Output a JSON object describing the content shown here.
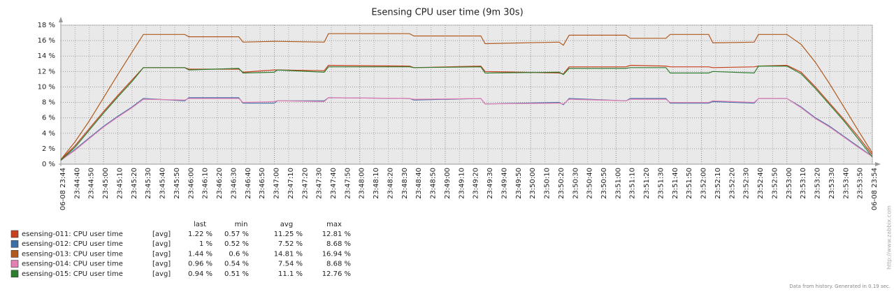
{
  "chart_data": {
    "type": "line",
    "title": "Esensing CPU user time (9m 30s)",
    "x": [
      0,
      10,
      20,
      30,
      40,
      50,
      58,
      87,
      90,
      125,
      128,
      150,
      152,
      185,
      188,
      245,
      248,
      295,
      298,
      350,
      353,
      357,
      397,
      400,
      425,
      428,
      455,
      458,
      487,
      490,
      510,
      520,
      530,
      540,
      550,
      560,
      570
    ],
    "xlim": [
      0,
      570
    ],
    "xticks": [
      {
        "value": 0,
        "label": "06-08 23:44"
      },
      {
        "value": 10,
        "label": "23:44:40"
      },
      {
        "value": 20,
        "label": "23:44:50"
      },
      {
        "value": 30,
        "label": "23:45:00"
      },
      {
        "value": 40,
        "label": "23:45:10"
      },
      {
        "value": 50,
        "label": "23:45:20"
      },
      {
        "value": 60,
        "label": "23:45:30"
      },
      {
        "value": 70,
        "label": "23:45:40"
      },
      {
        "value": 80,
        "label": "23:45:50"
      },
      {
        "value": 90,
        "label": "23:46:00"
      },
      {
        "value": 100,
        "label": "23:46:10"
      },
      {
        "value": 110,
        "label": "23:46:20"
      },
      {
        "value": 120,
        "label": "23:46:30"
      },
      {
        "value": 130,
        "label": "23:46:40"
      },
      {
        "value": 140,
        "label": "23:46:50"
      },
      {
        "value": 150,
        "label": "23:47:00"
      },
      {
        "value": 160,
        "label": "23:47:10"
      },
      {
        "value": 170,
        "label": "23:47:20"
      },
      {
        "value": 180,
        "label": "23:47:30"
      },
      {
        "value": 190,
        "label": "23:47:40"
      },
      {
        "value": 200,
        "label": "23:47:50"
      },
      {
        "value": 210,
        "label": "23:48:00"
      },
      {
        "value": 220,
        "label": "23:48:10"
      },
      {
        "value": 230,
        "label": "23:48:20"
      },
      {
        "value": 240,
        "label": "23:48:30"
      },
      {
        "value": 250,
        "label": "23:48:40"
      },
      {
        "value": 260,
        "label": "23:48:50"
      },
      {
        "value": 270,
        "label": "23:49:00"
      },
      {
        "value": 280,
        "label": "23:49:10"
      },
      {
        "value": 290,
        "label": "23:49:20"
      },
      {
        "value": 300,
        "label": "23:49:30"
      },
      {
        "value": 310,
        "label": "23:49:40"
      },
      {
        "value": 320,
        "label": "23:49:50"
      },
      {
        "value": 330,
        "label": "23:50:00"
      },
      {
        "value": 340,
        "label": "23:50:10"
      },
      {
        "value": 350,
        "label": "23:50:20"
      },
      {
        "value": 360,
        "label": "23:50:30"
      },
      {
        "value": 370,
        "label": "23:50:40"
      },
      {
        "value": 380,
        "label": "23:50:50"
      },
      {
        "value": 390,
        "label": "23:51:00"
      },
      {
        "value": 400,
        "label": "23:51:10"
      },
      {
        "value": 410,
        "label": "23:51:20"
      },
      {
        "value": 420,
        "label": "23:51:30"
      },
      {
        "value": 430,
        "label": "23:51:40"
      },
      {
        "value": 440,
        "label": "23:51:50"
      },
      {
        "value": 450,
        "label": "23:52:00"
      },
      {
        "value": 460,
        "label": "23:52:10"
      },
      {
        "value": 470,
        "label": "23:52:20"
      },
      {
        "value": 480,
        "label": "23:52:30"
      },
      {
        "value": 490,
        "label": "23:52:40"
      },
      {
        "value": 500,
        "label": "23:52:50"
      },
      {
        "value": 510,
        "label": "23:53:00"
      },
      {
        "value": 520,
        "label": "23:53:10"
      },
      {
        "value": 530,
        "label": "23:53:20"
      },
      {
        "value": 540,
        "label": "23:53:30"
      },
      {
        "value": 550,
        "label": "23:53:40"
      },
      {
        "value": 560,
        "label": "23:53:50"
      },
      {
        "value": 570,
        "label": "06-08 23:54"
      }
    ],
    "ylim": [
      0,
      18
    ],
    "yticks": [
      {
        "value": 0,
        "label": "0 %"
      },
      {
        "value": 2,
        "label": "2 %"
      },
      {
        "value": 4,
        "label": "4 %"
      },
      {
        "value": 6,
        "label": "6 %"
      },
      {
        "value": 8,
        "label": "8 %"
      },
      {
        "value": 10,
        "label": "10 %"
      },
      {
        "value": 12,
        "label": "12 %"
      },
      {
        "value": 14,
        "label": "14 %"
      },
      {
        "value": 16,
        "label": "16 %"
      },
      {
        "value": 18,
        "label": "18 %"
      }
    ],
    "grid": true,
    "legend_columns": [
      "last",
      "min",
      "avg",
      "max"
    ],
    "series": [
      {
        "name": "esensing-011: CPU user time",
        "function": "[avg]",
        "last": "1.22 %",
        "min": "0.57 %",
        "avg": "11.25 %",
        "max": "12.81 %",
        "color": "#c8401e",
        "values": [
          0.6,
          2.4,
          4.6,
          6.8,
          8.9,
          10.9,
          12.5,
          12.5,
          12.3,
          12.3,
          11.9,
          12.2,
          12.2,
          12.1,
          12.8,
          12.7,
          12.5,
          12.7,
          12.0,
          11.8,
          11.7,
          12.6,
          12.6,
          12.8,
          12.7,
          12.6,
          12.6,
          12.5,
          12.6,
          12.7,
          12.8,
          11.9,
          10.0,
          7.9,
          5.8,
          3.6,
          1.22
        ]
      },
      {
        "name": "esensing-012: CPU user time",
        "function": "[avg]",
        "last": "1 %",
        "min": "0.52 %",
        "avg": "7.52 %",
        "max": "8.68 %",
        "color": "#3c6fa8",
        "values": [
          0.5,
          1.9,
          3.4,
          4.9,
          6.2,
          7.4,
          8.5,
          8.2,
          8.6,
          8.6,
          7.9,
          7.9,
          8.2,
          8.2,
          8.6,
          8.5,
          8.3,
          8.5,
          7.8,
          8.0,
          7.7,
          8.5,
          8.2,
          8.5,
          8.5,
          7.9,
          7.9,
          8.1,
          7.9,
          8.5,
          8.5,
          7.4,
          6.0,
          4.9,
          3.6,
          2.3,
          1.0
        ]
      },
      {
        "name": "esensing-013: CPU user time",
        "function": "[avg]",
        "last": "1.44 %",
        "min": "0.6 %",
        "avg": "14.81 %",
        "max": "16.94 %",
        "color": "#b05a1e",
        "values": [
          0.6,
          2.9,
          5.6,
          8.6,
          11.6,
          14.5,
          16.8,
          16.8,
          16.5,
          16.5,
          15.8,
          15.9,
          15.9,
          15.8,
          16.9,
          16.9,
          16.6,
          16.6,
          15.6,
          15.8,
          15.4,
          16.7,
          16.7,
          16.3,
          16.3,
          16.8,
          16.8,
          15.7,
          15.8,
          16.8,
          16.8,
          15.5,
          13.2,
          10.4,
          7.4,
          4.4,
          1.44
        ]
      },
      {
        "name": "esensing-014: CPU user time",
        "function": "[avg]",
        "last": "0.96 %",
        "min": "0.54 %",
        "avg": "7.54 %",
        "max": "8.68 %",
        "color": "#e680b4",
        "values": [
          0.5,
          1.8,
          3.3,
          4.8,
          6.1,
          7.3,
          8.4,
          8.3,
          8.5,
          8.5,
          8.0,
          8.1,
          8.2,
          8.1,
          8.6,
          8.5,
          8.4,
          8.5,
          7.8,
          7.9,
          7.8,
          8.4,
          8.2,
          8.4,
          8.4,
          8.0,
          8.0,
          8.2,
          8.0,
          8.5,
          8.5,
          7.3,
          5.9,
          4.8,
          3.5,
          2.2,
          0.96
        ]
      },
      {
        "name": "esensing-015: CPU user time",
        "function": "[avg]",
        "last": "0.94 %",
        "min": "0.51 %",
        "avg": "11.1 %",
        "max": "12.76 %",
        "color": "#2e7d2e",
        "values": [
          0.5,
          2.2,
          4.4,
          6.6,
          8.7,
          10.7,
          12.5,
          12.5,
          12.2,
          12.4,
          11.8,
          11.9,
          12.2,
          11.9,
          12.6,
          12.6,
          12.5,
          12.6,
          11.8,
          11.9,
          11.6,
          12.4,
          12.4,
          12.5,
          12.5,
          11.8,
          11.8,
          12.0,
          11.8,
          12.7,
          12.7,
          11.7,
          9.8,
          7.7,
          5.6,
          3.3,
          0.94
        ]
      }
    ],
    "watermark": "http://www.zabbix.com",
    "footer": "Data from history. Generated in 0.19 sec."
  }
}
